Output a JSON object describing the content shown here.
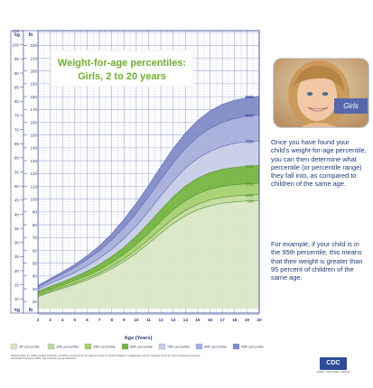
{
  "chart_data": {
    "type": "area",
    "title_line1": "Weight-for-age percentiles:",
    "title_line2": "Girls, 2 to 20 years",
    "xlabel": "Age (Years)",
    "unit_left_top": "kg",
    "unit_right_top": "lb",
    "xlim": [
      2,
      20
    ],
    "ylim_kg": [
      5,
      105
    ],
    "ylim_lb": [
      10,
      230
    ],
    "x": [
      2,
      3,
      4,
      5,
      6,
      7,
      8,
      9,
      10,
      11,
      12,
      13,
      14,
      15,
      16,
      17,
      18,
      19,
      20
    ],
    "x_ticks": [
      "2",
      "3",
      "4",
      "5",
      "6",
      "7",
      "8",
      "9",
      "10",
      "11",
      "12",
      "13",
      "14",
      "15",
      "16",
      "17",
      "18",
      "19",
      "20"
    ],
    "kg_ticks": [
      "10",
      "15",
      "20",
      "25",
      "30",
      "35",
      "40",
      "45",
      "50",
      "55",
      "60",
      "65",
      "70",
      "75",
      "80",
      "85",
      "90",
      "95",
      "100",
      "105"
    ],
    "lb_ticks": [
      "20",
      "30",
      "40",
      "50",
      "60",
      "70",
      "80",
      "90",
      "100",
      "110",
      "120",
      "130",
      "140",
      "150",
      "160",
      "170",
      "180",
      "190",
      "200",
      "210",
      "220"
    ],
    "series": [
      {
        "name": "95th",
        "values": [
          14.8,
          17.2,
          19.6,
          22.2,
          25.3,
          28.8,
          33.1,
          38.2,
          43.9,
          50.2,
          56.9,
          63.3,
          68.8,
          73.2,
          76.6,
          78.9,
          80.4,
          81.3,
          81.8
        ]
      },
      {
        "name": "90th",
        "values": [
          14.3,
          16.6,
          18.8,
          21.2,
          24.0,
          27.1,
          30.9,
          35.3,
          40.4,
          46.2,
          52.3,
          58.2,
          63.3,
          67.4,
          70.4,
          72.5,
          73.9,
          74.8,
          75.3
        ]
      },
      {
        "name": "75th",
        "values": [
          13.5,
          15.5,
          17.4,
          19.4,
          21.7,
          24.4,
          27.6,
          31.4,
          35.9,
          41.0,
          46.5,
          51.8,
          56.4,
          59.8,
          62.3,
          64.0,
          65.1,
          65.7,
          66.0
        ]
      },
      {
        "name": "50th",
        "values": [
          12.6,
          14.4,
          16.0,
          17.8,
          19.8,
          22.2,
          25.0,
          28.3,
          32.2,
          36.8,
          41.6,
          46.2,
          50.0,
          52.8,
          54.7,
          55.9,
          56.6,
          57.0,
          57.2
        ]
      },
      {
        "name": "25th",
        "values": [
          11.8,
          13.4,
          14.9,
          16.5,
          18.3,
          20.4,
          22.9,
          25.9,
          29.3,
          33.3,
          37.6,
          41.6,
          44.8,
          47.3,
          48.9,
          49.9,
          50.5,
          50.8,
          51.0
        ]
      },
      {
        "name": "10th",
        "values": [
          11.2,
          12.8,
          14.2,
          15.6,
          17.3,
          19.2,
          21.5,
          24.2,
          27.3,
          31.0,
          34.8,
          38.4,
          41.4,
          43.6,
          45.1,
          46.0,
          46.5,
          46.8,
          47.0
        ]
      },
      {
        "name": "5th",
        "values": [
          10.8,
          12.4,
          13.7,
          15.1,
          16.7,
          18.5,
          20.7,
          23.2,
          26.2,
          29.7,
          33.3,
          36.7,
          39.5,
          41.6,
          43.0,
          43.9,
          44.4,
          44.7,
          44.9
        ]
      }
    ],
    "band_colors": {
      "lt5": "#d9e7c4",
      "p5_10": "#c0dc9c",
      "p10_25": "#a4cf6b",
      "p25_50": "#72b33c",
      "p50_75": "#c7cce7",
      "p75_90": "#a5adda",
      "p90_95": "#7e89c6"
    },
    "legend": [
      {
        "label": "5th percentile",
        "color": "#d9e7c4"
      },
      {
        "label": "10th percentile",
        "color": "#c0dc9c"
      },
      {
        "label": "25th percentile",
        "color": "#a4cf6b"
      },
      {
        "label": "50th percentile",
        "color": "#72b33c"
      },
      {
        "label": "75th percentile",
        "color": "#c7cce7"
      },
      {
        "label": "90th percentile",
        "color": "#a5adda"
      },
      {
        "label": "95th percentile",
        "color": "#7e89c6"
      }
    ],
    "grid": true,
    "legend_position": "bottom"
  },
  "side": {
    "photo_label": "Girls",
    "paragraph1": "Once you have found your child's weight-for-age percentile, you can then determine what percentile (or percentile range) they fall into, as compared to children of the same age.",
    "paragraph2": "For example, if your child is in the 95th percentile, this means that their weight is greater than 95 percent of children of the same age."
  },
  "footer": {
    "text": "Published May 30, 2000 (modified 11/21/00). SOURCE: Developed by the National Center for Health Statistics in collaboration with the National Center for Chronic Disease Prevention and Health Promotion (2000). http://www.cdc.gov/growthcharts",
    "logo": "CDC",
    "tagline": "SAFER · HEALTHIER · PEOPLE"
  }
}
